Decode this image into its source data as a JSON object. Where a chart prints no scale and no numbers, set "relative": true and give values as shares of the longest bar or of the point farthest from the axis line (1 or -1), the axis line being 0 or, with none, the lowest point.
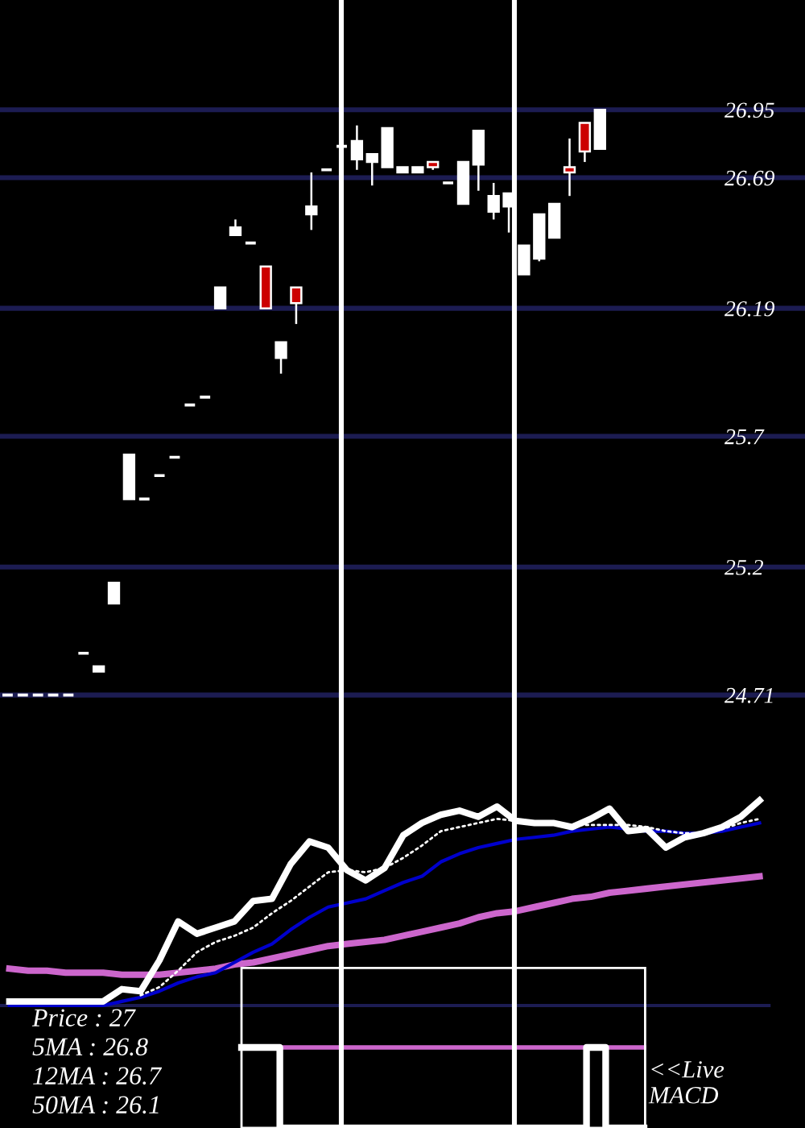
{
  "chart_data": [
    {
      "type": "candlestick",
      "categories": [
        null,
        null,
        null,
        null,
        null,
        null,
        null,
        null,
        null,
        null,
        null,
        null,
        null,
        null,
        null,
        null,
        null,
        null,
        null,
        null,
        null,
        null,
        null,
        null,
        null,
        null,
        null,
        null,
        null,
        null,
        null,
        null,
        null,
        null,
        null,
        null,
        null,
        null,
        null,
        null,
        null,
        null,
        null,
        null,
        null,
        null,
        null,
        null,
        null,
        null,
        null,
        null,
        null
      ],
      "ohlc": [
        [
          24.71,
          24.71,
          24.71,
          24.71
        ],
        [
          24.71,
          24.71,
          24.71,
          24.71
        ],
        [
          24.71,
          24.71,
          24.71,
          24.71
        ],
        [
          24.71,
          24.71,
          24.71,
          24.71
        ],
        [
          24.71,
          24.71,
          24.71,
          24.71
        ],
        [
          24.87,
          24.87,
          24.87,
          24.87
        ],
        [
          24.8,
          24.82,
          24.8,
          24.82
        ],
        [
          25.06,
          25.14,
          25.06,
          25.14
        ],
        [
          25.46,
          25.63,
          25.46,
          25.63
        ],
        [
          25.46,
          25.46,
          25.46,
          25.46
        ],
        [
          25.55,
          25.55,
          25.55,
          25.55
        ],
        [
          25.62,
          25.62,
          25.62,
          25.62
        ],
        [
          25.82,
          25.82,
          25.82,
          25.82
        ],
        [
          25.85,
          25.85,
          25.85,
          25.85
        ],
        [
          26.19,
          26.27,
          26.19,
          26.27
        ],
        [
          26.47,
          26.53,
          26.47,
          26.5
        ],
        [
          26.44,
          26.44,
          26.44,
          26.44
        ],
        [
          26.35,
          26.35,
          26.19,
          26.19
        ],
        [
          26.0,
          26.06,
          25.94,
          26.06
        ],
        [
          26.27,
          26.27,
          26.13,
          26.21
        ],
        [
          26.55,
          26.71,
          26.49,
          26.58
        ],
        [
          26.72,
          26.72,
          26.72,
          26.72
        ],
        [
          26.81,
          26.81,
          26.81,
          26.81
        ],
        [
          26.76,
          26.89,
          26.72,
          26.83
        ],
        [
          26.75,
          26.78,
          26.66,
          26.78
        ],
        [
          26.73,
          26.88,
          26.73,
          26.88
        ],
        [
          26.71,
          26.73,
          26.71,
          26.73
        ],
        [
          26.71,
          26.73,
          26.71,
          26.73
        ],
        [
          26.75,
          26.75,
          26.72,
          26.73
        ],
        [
          26.67,
          26.67,
          26.67,
          26.67
        ],
        [
          26.59,
          26.75,
          26.59,
          26.75
        ],
        [
          26.74,
          26.87,
          26.64,
          26.87
        ],
        [
          26.56,
          26.67,
          26.53,
          26.62
        ],
        [
          26.58,
          26.63,
          26.48,
          26.63
        ],
        [
          26.32,
          26.43,
          26.32,
          26.43
        ],
        [
          26.38,
          26.55,
          26.37,
          26.55
        ],
        [
          26.46,
          26.59,
          26.46,
          26.59
        ],
        [
          26.73,
          26.84,
          26.62,
          26.71
        ],
        [
          26.9,
          26.9,
          26.75,
          26.79
        ],
        [
          26.8,
          26.95,
          26.8,
          26.95
        ],
        null,
        null,
        null,
        null,
        null,
        null,
        null,
        null,
        null,
        null,
        null,
        null,
        null
      ],
      "colors": [
        "#ffffff",
        "#ffffff",
        "#ffffff",
        "#ffffff",
        "#ffffff",
        "#ffffff",
        "#ffffff",
        "#ffffff",
        "#ffffff",
        "#ffffff",
        "#ffffff",
        "#ffffff",
        "#ffffff",
        "#ffffff",
        "#ffffff",
        "#ffffff",
        "#ffffff",
        "#cc0000",
        "#ffffff",
        "#cc0000",
        "#ffffff",
        "#ffffff",
        "#ffffff",
        "#ffffff",
        "#ffffff",
        "#ffffff",
        "#ffffff",
        "#ffffff",
        "#cc0000",
        "#ffffff",
        "#ffffff",
        "#ffffff",
        "#ffffff",
        "#ffffff",
        "#ffffff",
        "#ffffff",
        "#ffffff",
        "#cc0000",
        "#cc0000",
        "#ffffff",
        null,
        null,
        null,
        null,
        null,
        null,
        null,
        null,
        null,
        null,
        null,
        null,
        null
      ],
      "ylim": [
        24.71,
        27.37
      ],
      "yticks": [
        24.71,
        25.2,
        25.7,
        26.19,
        26.69,
        26.95
      ],
      "grid": "y",
      "tick_labels": "y"
    },
    {
      "type": "line",
      "relative": true,
      "categories": [
        null,
        null,
        null,
        null,
        null,
        null,
        null,
        null,
        null,
        null,
        null,
        null,
        null,
        null,
        null,
        null,
        null,
        null,
        null,
        null,
        null,
        null,
        null,
        null,
        null,
        null,
        null,
        null,
        null,
        null,
        null,
        null,
        null,
        null,
        null,
        null,
        null,
        null,
        null,
        null,
        null
      ],
      "series": [
        {
          "color": "#cc66cc",
          "values": [
            0.18,
            0.17,
            0.17,
            0.16,
            0.16,
            0.16,
            0.15,
            0.15,
            0.15,
            0.16,
            0.17,
            0.18,
            0.2,
            0.21,
            0.23,
            0.25,
            0.27,
            0.29,
            0.3,
            0.31,
            0.32,
            0.34,
            0.36,
            0.38,
            0.4,
            0.43,
            0.45,
            0.46,
            0.48,
            0.5,
            0.52,
            0.53,
            0.55,
            0.56,
            0.57,
            0.58,
            0.59,
            0.6,
            0.61,
            0.62,
            0.63
          ]
        },
        {
          "color": "#0000cc",
          "values": [
            0,
            0,
            0,
            0,
            0,
            0,
            0.02,
            0.04,
            0.07,
            0.11,
            0.14,
            0.16,
            0.21,
            0.26,
            0.3,
            0.37,
            0.43,
            0.48,
            0.5,
            0.52,
            0.56,
            0.6,
            0.63,
            0.7,
            0.74,
            0.77,
            0.79,
            0.81,
            0.82,
            0.83,
            0.85,
            0.86,
            0.87,
            0.86,
            0.85,
            0.85,
            0.84,
            0.84,
            0.85,
            0.87,
            0.89
          ]
        },
        {
          "color": "#ffffff",
          "line_style": "dotted",
          "values": [
            null,
            null,
            null,
            null,
            null,
            null,
            null,
            0.05,
            0.09,
            0.17,
            0.26,
            0.31,
            0.34,
            0.38,
            0.45,
            0.51,
            0.58,
            0.65,
            0.66,
            0.65,
            0.67,
            0.72,
            0.78,
            0.85,
            0.87,
            0.89,
            0.91,
            0.9,
            0.89,
            0.89,
            0.88,
            0.88,
            0.88,
            0.88,
            0.87,
            0.85,
            0.84,
            0.84,
            0.86,
            0.89,
            0.91
          ]
        },
        {
          "color": "#ffffff",
          "values": [
            0.02,
            0.02,
            0.02,
            0.02,
            0.02,
            0.02,
            0.08,
            0.07,
            0.22,
            0.41,
            0.35,
            0.38,
            0.41,
            0.51,
            0.52,
            0.69,
            0.8,
            0.77,
            0.66,
            0.61,
            0.67,
            0.83,
            0.89,
            0.93,
            0.95,
            0.92,
            0.97,
            0.9,
            0.89,
            0.89,
            0.87,
            0.91,
            0.96,
            0.85,
            0.86,
            0.77,
            0.82,
            0.84,
            0.87,
            0.92,
            1.0
          ]
        }
      ],
      "annotations": [
        "Price : 27",
        "5MA : 26.8",
        "12MA : 26.7",
        "50MA : 26.1"
      ],
      "tick_labels": false
    },
    {
      "type": "step",
      "relative": true,
      "categories": [
        null,
        null,
        null,
        null,
        null,
        null,
        null,
        null,
        null,
        null,
        null,
        null,
        null,
        null,
        null,
        null,
        null,
        null,
        null,
        null,
        null,
        null
      ],
      "series": [
        {
          "color": "#cc66cc",
          "values": [
            1,
            1,
            1,
            1,
            1,
            1,
            1,
            1,
            1,
            1,
            1,
            1,
            1,
            1,
            1,
            1,
            1,
            1,
            1,
            1,
            1,
            1
          ]
        },
        {
          "color": "#ffffff",
          "values": [
            1,
            1,
            0,
            0,
            0,
            0,
            0,
            0,
            0,
            0,
            0,
            0,
            0,
            0,
            0,
            0,
            0,
            0,
            1,
            0,
            0,
            0
          ]
        }
      ],
      "annotations": [
        "<<Live\nMACD"
      ],
      "tick_labels": false
    }
  ]
}
